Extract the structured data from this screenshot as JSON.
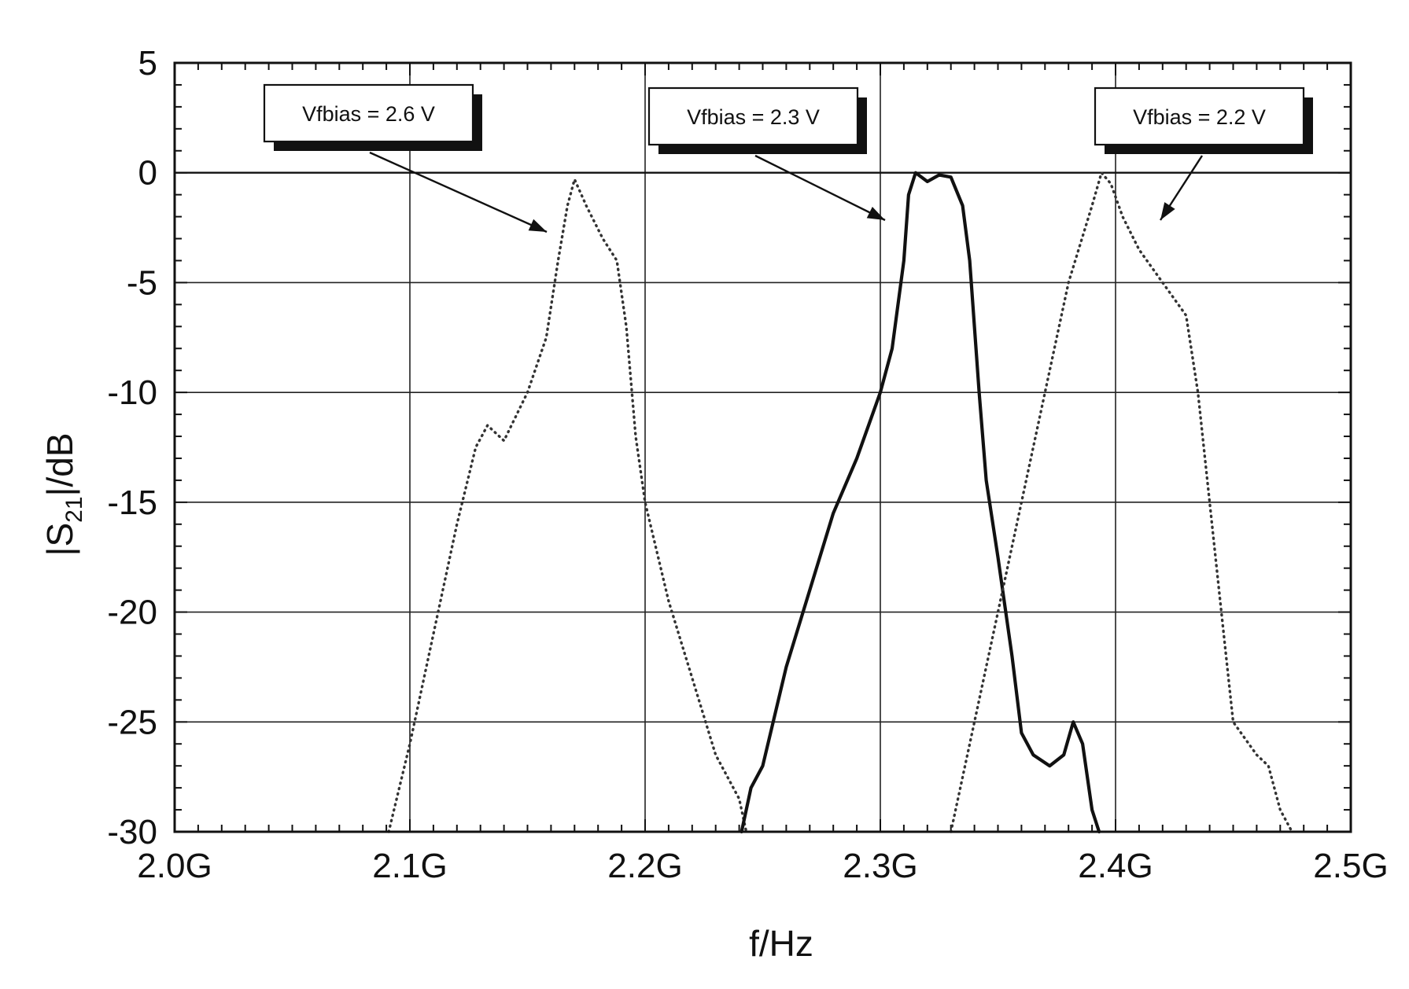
{
  "chart_data": {
    "type": "line",
    "title": "",
    "xlabel": "f/Hz",
    "ylabel_prefix": "|S",
    "ylabel_sub": "21",
    "ylabel_suffix": "|/dB",
    "xlim": [
      2.0,
      2.5
    ],
    "ylim": [
      -30,
      5
    ],
    "x_ticks": [
      2.0,
      2.1,
      2.2,
      2.3,
      2.4,
      2.5
    ],
    "x_tick_labels": [
      "2.0G",
      "2.1G",
      "2.2G",
      "2.3G",
      "2.4G",
      "2.5G"
    ],
    "y_ticks": [
      5,
      0,
      -5,
      -10,
      -15,
      -20,
      -25,
      -30
    ],
    "y_tick_labels": [
      "5",
      "0",
      "-5",
      "-10",
      "-15",
      "-20",
      "-25",
      "-30"
    ],
    "grid": true,
    "series": [
      {
        "style": "dotted",
        "x": [
          2.091,
          2.1,
          2.11,
          2.12,
          2.128,
          2.133,
          2.14,
          2.15,
          2.158,
          2.163,
          2.167,
          2.17,
          2.175,
          2.182,
          2.188,
          2.192,
          2.196,
          2.2,
          2.21,
          2.22,
          2.23,
          2.24,
          2.243
        ],
        "y": [
          -30,
          -26,
          -21,
          -16,
          -12.5,
          -11.5,
          -12.2,
          -10,
          -7.5,
          -4,
          -1.5,
          -0.3,
          -1.5,
          -3,
          -4,
          -7,
          -12,
          -15,
          -19.5,
          -23,
          -26.5,
          -28.5,
          -30
        ]
      },
      {
        "style": "solid",
        "x": [
          2.241,
          2.245,
          2.25,
          2.26,
          2.27,
          2.28,
          2.29,
          2.3,
          2.305,
          2.31,
          2.312,
          2.315,
          2.32,
          2.325,
          2.33,
          2.335,
          2.338,
          2.34,
          2.342,
          2.345,
          2.35,
          2.356,
          2.36,
          2.365,
          2.372,
          2.378,
          2.382,
          2.386,
          2.39,
          2.393
        ],
        "y": [
          -30,
          -28,
          -27,
          -22.5,
          -19,
          -15.5,
          -13,
          -10,
          -8,
          -4,
          -1,
          0,
          -0.4,
          -0.1,
          -0.2,
          -1.5,
          -4,
          -7,
          -10,
          -14,
          -17.5,
          -22,
          -25.5,
          -26.5,
          -27,
          -26.5,
          -25,
          -26,
          -29,
          -30
        ]
      },
      {
        "style": "dotted",
        "x": [
          2.33,
          2.34,
          2.35,
          2.36,
          2.37,
          2.38,
          2.39,
          2.394,
          2.398,
          2.403,
          2.41,
          2.42,
          2.43,
          2.435,
          2.44,
          2.445,
          2.45,
          2.46,
          2.465,
          2.47,
          2.475
        ],
        "y": [
          -30,
          -25,
          -20,
          -15,
          -10,
          -5,
          -1.5,
          0,
          -0.5,
          -2,
          -3.5,
          -5,
          -6.5,
          -10,
          -15,
          -20,
          -25,
          -26.5,
          -27,
          -29,
          -30
        ]
      }
    ],
    "annotations": [
      {
        "text": "Vfbias = 2.6 V"
      },
      {
        "text": "Vfbias = 2.3 V"
      },
      {
        "text": "Vfbias = 2.2 V"
      }
    ]
  }
}
